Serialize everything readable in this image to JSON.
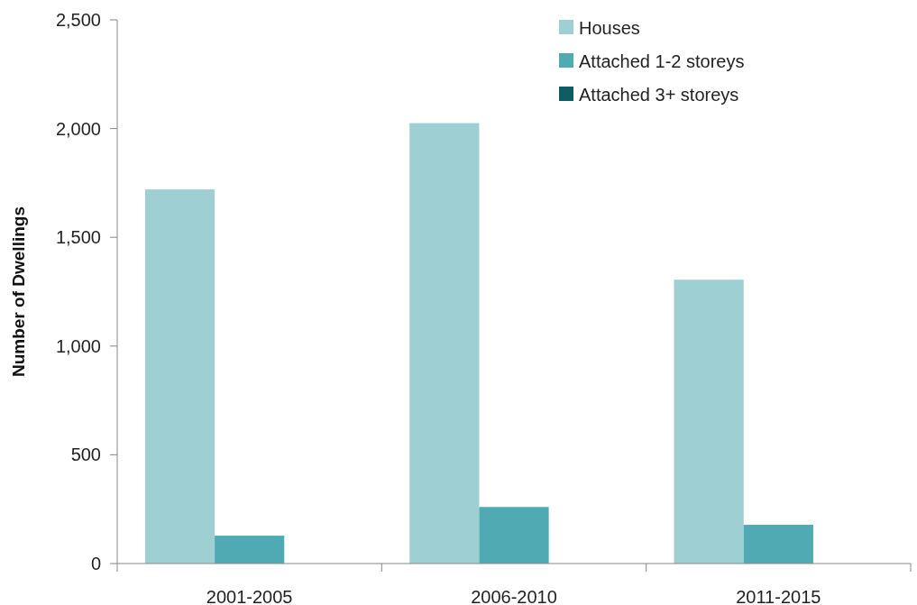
{
  "chart_data": {
    "type": "bar",
    "ylabel": "Number of Dwellings",
    "categories": [
      "2001-2005",
      "2006-2010",
      "2011-2015"
    ],
    "series": [
      {
        "name": "Houses",
        "color": "#9dcfd3",
        "values": [
          1720,
          2025,
          1305
        ]
      },
      {
        "name": "Attached 1-2 storeys",
        "color": "#4faab3",
        "values": [
          128,
          260,
          178
        ]
      },
      {
        "name": "Attached 3+ storeys",
        "color": "#0f5c63",
        "values": [
          0,
          0,
          0
        ]
      }
    ],
    "ylim": [
      0,
      2500
    ],
    "yticks": [
      {
        "value": 0,
        "label": "0"
      },
      {
        "value": 500,
        "label": "500"
      },
      {
        "value": 1000,
        "label": "1,000"
      },
      {
        "value": 1500,
        "label": "1,500"
      },
      {
        "value": 2000,
        "label": "2,000"
      },
      {
        "value": 2500,
        "label": "2,500"
      }
    ],
    "grid": false,
    "legend": "top right"
  }
}
